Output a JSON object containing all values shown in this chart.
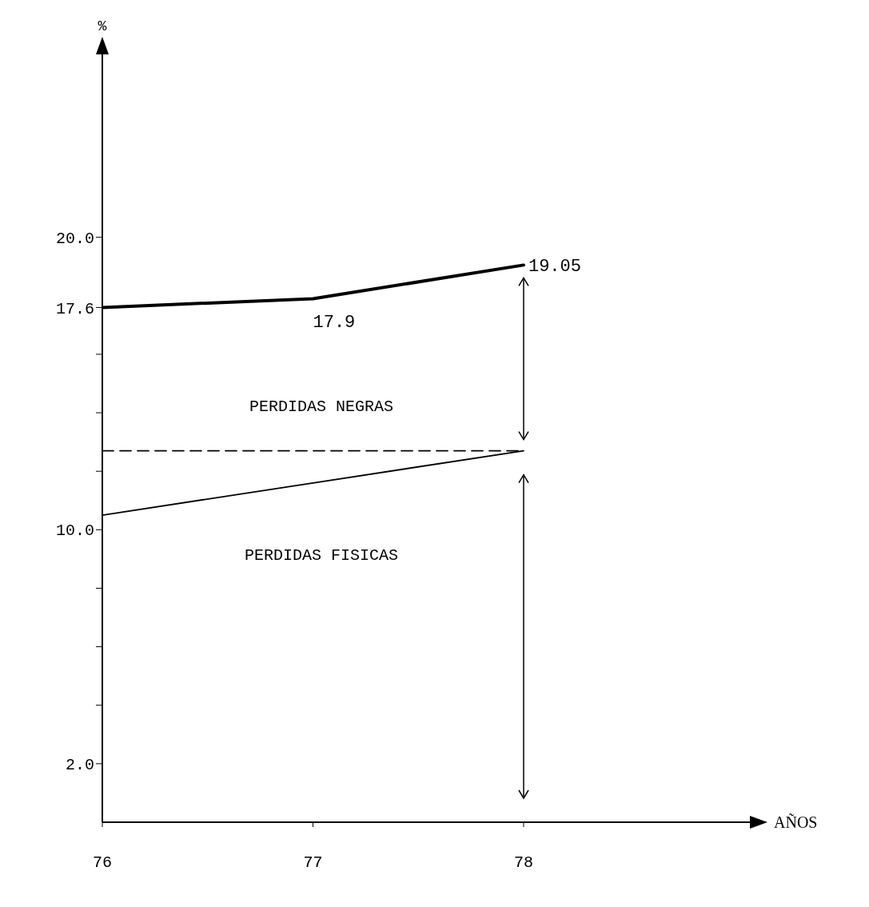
{
  "chart_data": {
    "type": "line",
    "xlabel": "AÑOS",
    "ylabel": "%",
    "x": [
      76,
      77,
      78
    ],
    "xlim": [
      76,
      79.15
    ],
    "xticks": [
      76,
      77,
      78
    ],
    "ylim": [
      0,
      26.8
    ],
    "yticks": [
      {
        "value": 2,
        "label": "2.0"
      },
      {
        "value": 4,
        "label": null
      },
      {
        "value": 6,
        "label": null
      },
      {
        "value": 8,
        "label": null
      },
      {
        "value": 10,
        "label": "10.0"
      },
      {
        "value": 12,
        "label": null
      },
      {
        "value": 14,
        "label": null
      },
      {
        "value": 16,
        "label": null
      },
      {
        "value": 17.6,
        "label": "17.6"
      },
      {
        "value": 20,
        "label": "20.0"
      }
    ],
    "marker": "none",
    "series": [
      {
        "color": "#000000",
        "values": [
          17.6,
          17.9,
          19.05
        ],
        "value_labels": [
          null,
          "17.9",
          "19.05"
        ],
        "line_style": "solid"
      },
      {
        "color": "#000000",
        "values": [
          12.7,
          12.7,
          12.7
        ],
        "line_style": "dashed"
      },
      {
        "color": "#000000",
        "values": [
          10.5,
          11.6,
          12.7
        ],
        "line_style": "solid"
      }
    ],
    "annotations": [
      "PERDIDAS NEGRAS",
      "PERDIDAS FISICAS"
    ]
  }
}
